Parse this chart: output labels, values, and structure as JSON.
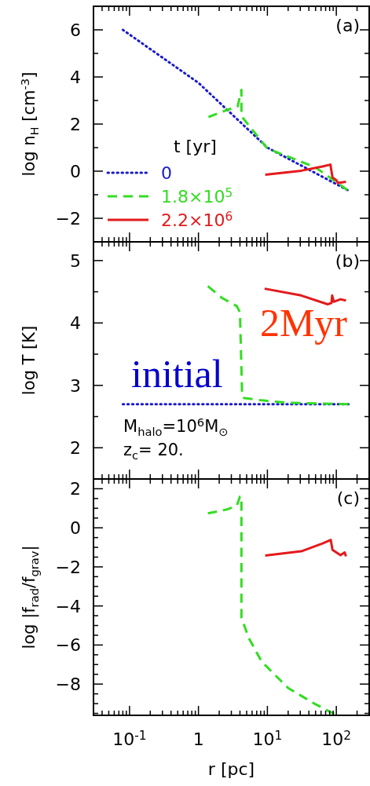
{
  "chart_data": [
    {
      "type": "line",
      "log": "x",
      "ylabel": "log n$_{H}$ [cm$^{-3}$]",
      "xlim": [
        0.03,
        300
      ],
      "ylim": [
        -3,
        7
      ],
      "tick_labels": "y",
      "legend": "bottom left",
      "legend_title": "t [yr]",
      "annotations": [
        "(a)"
      ],
      "xticks": [
        {
          "value": 0.03,
          "label": null
        },
        {
          "value": 0.04,
          "label": null
        },
        {
          "value": 0.05,
          "label": null
        },
        {
          "value": 0.06,
          "label": null
        },
        {
          "value": 0.07,
          "label": null
        },
        {
          "value": 0.08,
          "label": null
        },
        {
          "value": 0.09,
          "label": null
        },
        {
          "value": 0.1,
          "label": null
        },
        {
          "value": 0.2,
          "label": null
        },
        {
          "value": 0.3,
          "label": null
        },
        {
          "value": 0.4,
          "label": null
        },
        {
          "value": 0.5,
          "label": null
        },
        {
          "value": 0.6,
          "label": null
        },
        {
          "value": 0.7,
          "label": null
        },
        {
          "value": 0.8,
          "label": null
        },
        {
          "value": 0.9,
          "label": null
        },
        {
          "value": 1,
          "label": null
        },
        {
          "value": 2,
          "label": null
        },
        {
          "value": 3,
          "label": null
        },
        {
          "value": 4,
          "label": null
        },
        {
          "value": 5,
          "label": null
        },
        {
          "value": 6,
          "label": null
        },
        {
          "value": 7,
          "label": null
        },
        {
          "value": 8,
          "label": null
        },
        {
          "value": 9,
          "label": null
        },
        {
          "value": 10,
          "label": null
        },
        {
          "value": 20,
          "label": null
        },
        {
          "value": 30,
          "label": null
        },
        {
          "value": 40,
          "label": null
        },
        {
          "value": 50,
          "label": null
        },
        {
          "value": 60,
          "label": null
        },
        {
          "value": 70,
          "label": null
        },
        {
          "value": 80,
          "label": null
        },
        {
          "value": 90,
          "label": null
        },
        {
          "value": 100,
          "label": null
        },
        {
          "value": 200,
          "label": null
        },
        {
          "value": 300,
          "label": null
        }
      ],
      "yticks": [
        {
          "value": -3,
          "label": null
        },
        -2,
        {
          "value": -1,
          "label": null
        },
        0,
        {
          "value": 1,
          "label": null
        },
        2,
        {
          "value": 3,
          "label": null
        },
        4,
        {
          "value": 5,
          "label": null
        },
        6,
        {
          "value": 7,
          "label": null
        }
      ],
      "series": [
        {
          "name": "0",
          "color": "#1a1acc",
          "line_style": "dotted",
          "x": [
            0.08,
            1,
            10,
            145
          ],
          "values": [
            6.0,
            3.75,
            1.0,
            -0.8
          ]
        },
        {
          "name": "1.8×10$^{5}$",
          "color": "#33dd22",
          "line_style": "dashed",
          "x": [
            1.4,
            2.6,
            3.7,
            4.2,
            4.2,
            4.3,
            10,
            50,
            145
          ],
          "values": [
            2.3,
            2.6,
            2.75,
            3.45,
            2.4,
            2.3,
            0.96,
            0.16,
            -0.8
          ]
        },
        {
          "name": "2.2×10$^{6}$",
          "color": "#e41a1c",
          "line_style": "solid",
          "x": [
            9.3,
            31,
            63,
            82,
            88,
            100,
            105,
            138
          ],
          "values": [
            -0.15,
            0.02,
            0.2,
            0.28,
            -0.27,
            -0.38,
            -0.5,
            -0.45
          ]
        }
      ]
    },
    {
      "type": "line",
      "log": "x",
      "ylabel": "log T [K]",
      "xlim": [
        0.03,
        300
      ],
      "ylim": [
        1.5,
        5.3
      ],
      "tick_labels": "y",
      "annotations": [
        "(b)",
        "2Myr",
        "initial",
        "M$_{halo}$=10$^{6}$M$_{⊙}$",
        "z$_{c}$= 20."
      ],
      "xticks": [
        {
          "value": 0.03,
          "label": null
        },
        {
          "value": 0.04,
          "label": null
        },
        {
          "value": 0.05,
          "label": null
        },
        {
          "value": 0.06,
          "label": null
        },
        {
          "value": 0.07,
          "label": null
        },
        {
          "value": 0.08,
          "label": null
        },
        {
          "value": 0.09,
          "label": null
        },
        {
          "value": 0.1,
          "label": null
        },
        {
          "value": 0.2,
          "label": null
        },
        {
          "value": 0.3,
          "label": null
        },
        {
          "value": 0.4,
          "label": null
        },
        {
          "value": 0.5,
          "label": null
        },
        {
          "value": 0.6,
          "label": null
        },
        {
          "value": 0.7,
          "label": null
        },
        {
          "value": 0.8,
          "label": null
        },
        {
          "value": 0.9,
          "label": null
        },
        {
          "value": 1,
          "label": null
        },
        {
          "value": 2,
          "label": null
        },
        {
          "value": 3,
          "label": null
        },
        {
          "value": 4,
          "label": null
        },
        {
          "value": 5,
          "label": null
        },
        {
          "value": 6,
          "label": null
        },
        {
          "value": 7,
          "label": null
        },
        {
          "value": 8,
          "label": null
        },
        {
          "value": 9,
          "label": null
        },
        {
          "value": 10,
          "label": null
        },
        {
          "value": 20,
          "label": null
        },
        {
          "value": 30,
          "label": null
        },
        {
          "value": 40,
          "label": null
        },
        {
          "value": 50,
          "label": null
        },
        {
          "value": 60,
          "label": null
        },
        {
          "value": 70,
          "label": null
        },
        {
          "value": 80,
          "label": null
        },
        {
          "value": 90,
          "label": null
        },
        {
          "value": 100,
          "label": null
        },
        {
          "value": 200,
          "label": null
        },
        {
          "value": 300,
          "label": null
        }
      ],
      "yticks": [
        2,
        {
          "value": 2.5,
          "label": null
        },
        3,
        {
          "value": 3.5,
          "label": null
        },
        4,
        {
          "value": 4.5,
          "label": null
        },
        5
      ],
      "series": [
        {
          "color": "#1a1acc",
          "line_style": "dotted",
          "x": [
            0.08,
            150
          ],
          "values": [
            2.7,
            2.7
          ]
        },
        {
          "color": "#33dd22",
          "line_style": "dashed",
          "x": [
            1.37,
            2.2,
            3.6,
            4.0,
            4.3,
            4.4,
            8.3,
            20,
            150
          ],
          "values": [
            4.59,
            4.4,
            4.27,
            4.17,
            2.84,
            2.8,
            2.76,
            2.72,
            2.7
          ]
        },
        {
          "color": "#e41a1c",
          "line_style": "solid",
          "x": [
            9.1,
            31,
            75,
            85,
            87,
            92,
            115,
            138
          ],
          "values": [
            4.55,
            4.44,
            4.3,
            4.32,
            4.44,
            4.34,
            4.38,
            4.36
          ]
        }
      ]
    },
    {
      "type": "line",
      "log": "x",
      "xlabel": "r [pc]",
      "ylabel": "log |f$_{rad}$/f$_{grav}$|",
      "xlim": [
        0.03,
        300
      ],
      "ylim": [
        -9.6,
        2.5
      ],
      "annotations": [
        "(c)"
      ],
      "xticks": [
        {
          "value": 0.03,
          "label": null
        },
        {
          "value": 0.04,
          "label": null
        },
        {
          "value": 0.05,
          "label": null
        },
        {
          "value": 0.06,
          "label": null
        },
        {
          "value": 0.07,
          "label": null
        },
        {
          "value": 0.08,
          "label": null
        },
        {
          "value": 0.09,
          "label": null
        },
        {
          "value": 0.1,
          "label": "10$^{-1}$"
        },
        {
          "value": 0.2,
          "label": null
        },
        {
          "value": 0.3,
          "label": null
        },
        {
          "value": 0.4,
          "label": null
        },
        {
          "value": 0.5,
          "label": null
        },
        {
          "value": 0.6,
          "label": null
        },
        {
          "value": 0.7,
          "label": null
        },
        {
          "value": 0.8,
          "label": null
        },
        {
          "value": 0.9,
          "label": null
        },
        {
          "value": 1,
          "label": "1"
        },
        {
          "value": 2,
          "label": null
        },
        {
          "value": 3,
          "label": null
        },
        {
          "value": 4,
          "label": null
        },
        {
          "value": 5,
          "label": null
        },
        {
          "value": 6,
          "label": null
        },
        {
          "value": 7,
          "label": null
        },
        {
          "value": 8,
          "label": null
        },
        {
          "value": 9,
          "label": null
        },
        {
          "value": 10,
          "label": "10$^{1}$"
        },
        {
          "value": 20,
          "label": null
        },
        {
          "value": 30,
          "label": null
        },
        {
          "value": 40,
          "label": null
        },
        {
          "value": 50,
          "label": null
        },
        {
          "value": 60,
          "label": null
        },
        {
          "value": 70,
          "label": null
        },
        {
          "value": 80,
          "label": null
        },
        {
          "value": 90,
          "label": null
        },
        {
          "value": 100,
          "label": "10$^{2}$"
        },
        {
          "value": 200,
          "label": null
        },
        {
          "value": 300,
          "label": null
        }
      ],
      "yticks": [
        {
          "value": -9.5,
          "label": null
        },
        {
          "value": -9,
          "label": null
        },
        {
          "value": -8.5,
          "label": null
        },
        -8,
        {
          "value": -7.5,
          "label": null
        },
        {
          "value": -7,
          "label": null
        },
        {
          "value": -6.5,
          "label": null
        },
        -6,
        {
          "value": -5.5,
          "label": null
        },
        {
          "value": -5,
          "label": null
        },
        {
          "value": -4.5,
          "label": null
        },
        -4,
        {
          "value": -3.5,
          "label": null
        },
        {
          "value": -3,
          "label": null
        },
        {
          "value": -2.5,
          "label": null
        },
        -2,
        {
          "value": -1.5,
          "label": null
        },
        {
          "value": -1,
          "label": null
        },
        {
          "value": -0.5,
          "label": null
        },
        0,
        {
          "value": 0.5,
          "label": null
        },
        {
          "value": 1,
          "label": null
        },
        {
          "value": 1.5,
          "label": null
        },
        2
      ],
      "series": [
        {
          "color": "#33dd22",
          "line_style": "dashed",
          "x": [
            1.37,
            2.6,
            3.6,
            4.0,
            4.2,
            4.2,
            5.4,
            8.3,
            20,
            48,
            93
          ],
          "values": [
            0.74,
            0.94,
            1.14,
            1.6,
            1.6,
            -4.6,
            -5.66,
            -6.86,
            -8.2,
            -9.0,
            -9.53
          ]
        },
        {
          "color": "#e41a1c",
          "line_style": "solid",
          "x": [
            9.3,
            31,
            63,
            83,
            88,
            100,
            115,
            132,
            138
          ],
          "values": [
            -1.42,
            -1.2,
            -0.8,
            -0.62,
            -1.13,
            -1.26,
            -1.4,
            -1.26,
            -1.46
          ]
        }
      ]
    }
  ]
}
